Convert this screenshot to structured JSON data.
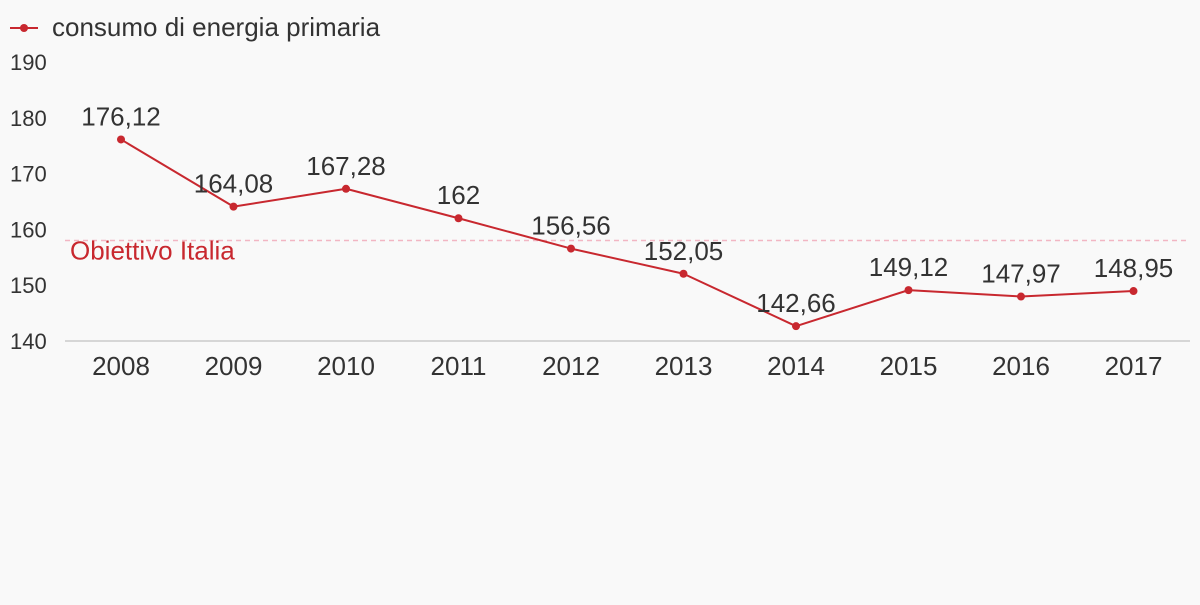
{
  "colors": {
    "background": "#f9f9f9",
    "series": "#c8282f",
    "reference_line": "#f2b6c3",
    "axis": "#d6d6d6",
    "text": "#333333"
  },
  "chart_data": {
    "type": "line",
    "categories": [
      "2008",
      "2009",
      "2010",
      "2011",
      "2012",
      "2013",
      "2014",
      "2015",
      "2016",
      "2017"
    ],
    "series": [
      {
        "name": "consumo di energia primaria",
        "values": [
          176.12,
          164.08,
          167.28,
          162,
          156.56,
          152.05,
          142.66,
          149.12,
          147.97,
          148.95
        ],
        "labels": [
          "176,12",
          "164,08",
          "167,28",
          "162",
          "156,56",
          "152,05",
          "142,66",
          "149,12",
          "147,97",
          "148,95"
        ]
      }
    ],
    "reference_lines": [
      {
        "label": "Obiettivo Italia",
        "value": 158,
        "style": "dashed"
      }
    ],
    "ylim": [
      140,
      190
    ],
    "yticks": [
      140,
      150,
      160,
      170,
      180,
      190
    ],
    "ytick_labels": [
      "140",
      "150",
      "160",
      "170",
      "180",
      "190"
    ],
    "legend_position": "top-left",
    "grid": false
  }
}
